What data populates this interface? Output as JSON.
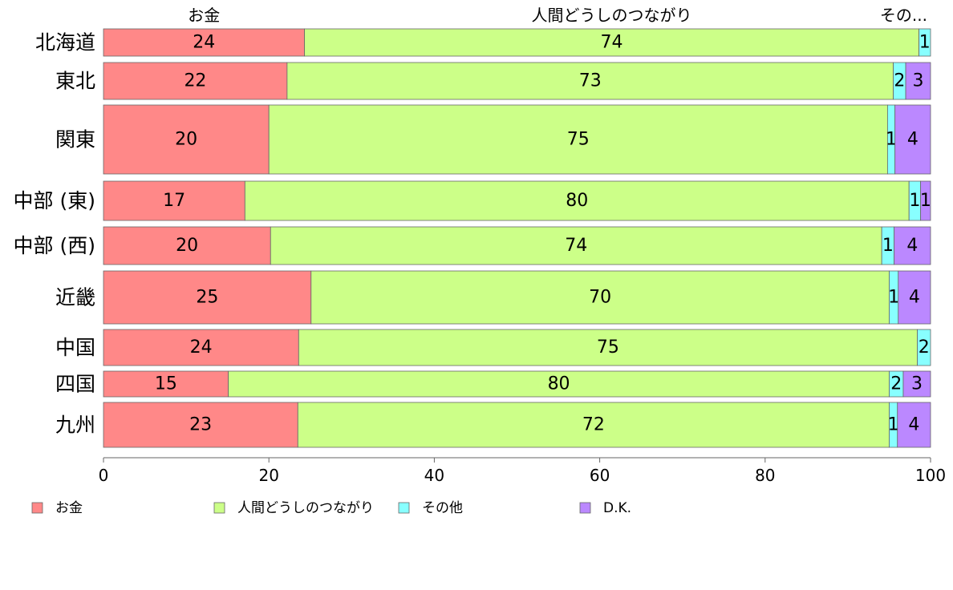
{
  "chart_data": {
    "type": "bar",
    "orientation": "horizontal",
    "stacked": true,
    "categories": [
      "北海道",
      "東北",
      "関東",
      "中部 (東)",
      "中部 (西)",
      "近畿",
      "中国",
      "四国",
      "九州"
    ],
    "series": [
      {
        "name": "お金",
        "color": "#ff8888",
        "values": [
          24.3,
          22.2,
          20.0,
          17.1,
          20.2,
          25.1,
          23.6,
          15.1,
          23.5
        ]
      },
      {
        "name": "人間どうしのつながり",
        "color": "#ccff88",
        "values": [
          74.3,
          73.3,
          74.8,
          80.3,
          73.9,
          69.9,
          74.8,
          79.9,
          71.5
        ]
      },
      {
        "name": "その他",
        "color": "#88ffff",
        "values": [
          1.4,
          1.5,
          0.9,
          1.4,
          1.5,
          1.1,
          1.6,
          1.7,
          1.0
        ]
      },
      {
        "name": "D.K.",
        "color": "#bb88ff",
        "values": [
          0.0,
          3.0,
          4.3,
          1.2,
          4.4,
          3.9,
          0.0,
          3.3,
          4.0
        ]
      }
    ],
    "data_labels": [
      [
        "24",
        "74",
        "1",
        ""
      ],
      [
        "22",
        "73",
        "2",
        "3"
      ],
      [
        "20",
        "75",
        "1",
        "4"
      ],
      [
        "17",
        "80",
        "1",
        "1"
      ],
      [
        "20",
        "74",
        "1",
        "4"
      ],
      [
        "25",
        "70",
        "1",
        "4"
      ],
      [
        "24",
        "75",
        "2",
        ""
      ],
      [
        "15",
        "80",
        "2",
        "3"
      ],
      [
        "23",
        "72",
        "1",
        "4"
      ]
    ],
    "top_labels": [
      "お金",
      "人間どうしのつながり",
      "その..."
    ],
    "xlim": [
      0,
      100
    ],
    "xticks": [
      0,
      20,
      40,
      60,
      80,
      100
    ],
    "legend": [
      "お金",
      "人間どうしのつながり",
      "その他",
      "D.K."
    ],
    "legend_position": "bottom",
    "title": "",
    "xlabel": "",
    "ylabel": ""
  }
}
